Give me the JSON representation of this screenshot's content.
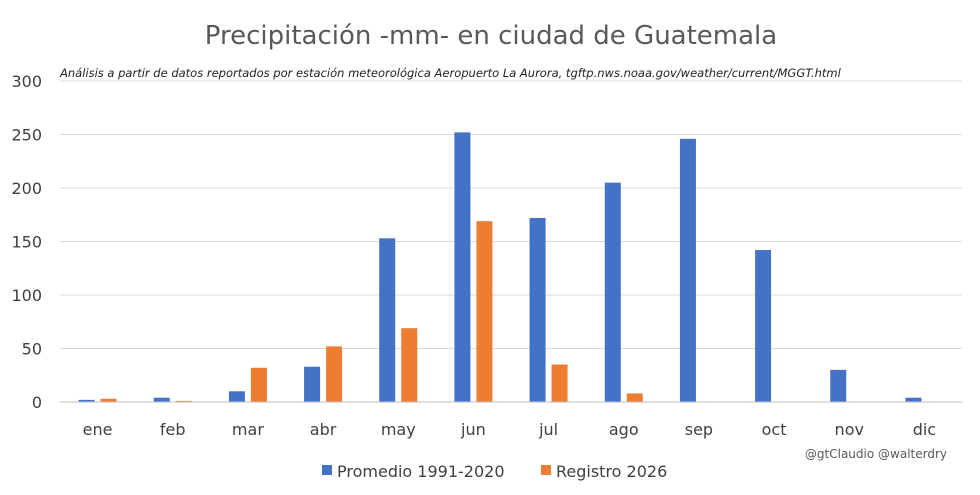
{
  "chart_data": {
    "type": "bar",
    "title": "Precipitación -mm- en ciudad de Guatemala",
    "subtitle": "Análisis a partir de datos reportados por estación meteorológica Aeropuerto La Aurora, tgftp.nws.noaa.gov/weather/current/MGGT.html",
    "categories": [
      "ene",
      "feb",
      "mar",
      "abr",
      "may",
      "jun",
      "jul",
      "ago",
      "sep",
      "oct",
      "nov",
      "dic"
    ],
    "series": [
      {
        "name": "Promedio 1991-2020",
        "color": "#4472C4",
        "values": [
          2,
          4,
          10,
          33,
          153,
          252,
          172,
          205,
          246,
          142,
          30,
          4
        ]
      },
      {
        "name": "Registro 2026",
        "color": "#ED7D31",
        "values": [
          3,
          1,
          32,
          52,
          69,
          169,
          35,
          8,
          0,
          0,
          0,
          0
        ]
      }
    ],
    "ylim": [
      0,
      300
    ],
    "yticks": [
      0,
      50,
      100,
      150,
      200,
      250,
      300
    ],
    "grid": true,
    "legend_position": "bottom",
    "credit": "@gtClaudio @walterdry"
  }
}
